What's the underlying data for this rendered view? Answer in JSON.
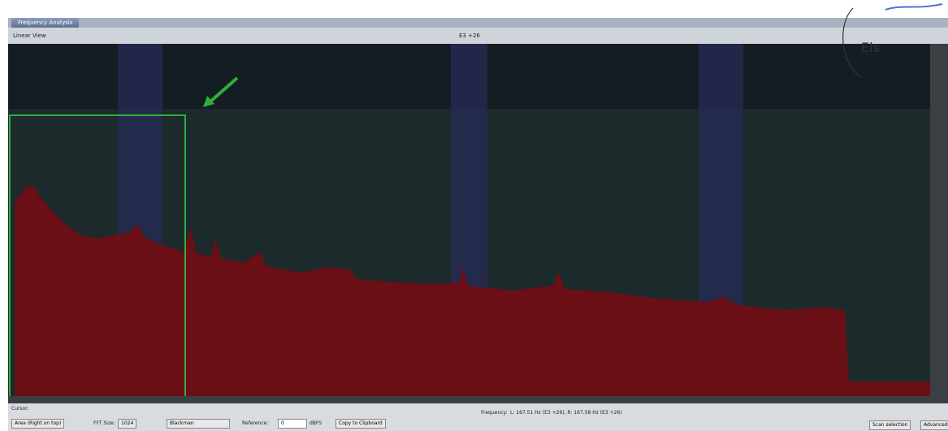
{
  "tab": {
    "title": "Frequency Analysis"
  },
  "toolbar": {
    "view": "Linear View",
    "note": "E3 +26"
  },
  "controls": {
    "cursor_label": "Cursor:",
    "mode": "Area (Right on top)",
    "fft_label": "FFT Size:",
    "fft_size": "1024",
    "window": "Blackman",
    "reference_label": "Reference:",
    "reference": "0",
    "unit": "dBFS",
    "copy": "Copy to Clipboard",
    "frequency_label": "Frequency:",
    "frequency": "L: 167.51 Hz (E3 +26), R: 167.58 Hz (E3 +26)",
    "scan": "Scan selection",
    "advanced": "Advanced"
  },
  "annotation": {
    "handwriting": "Els"
  }
}
